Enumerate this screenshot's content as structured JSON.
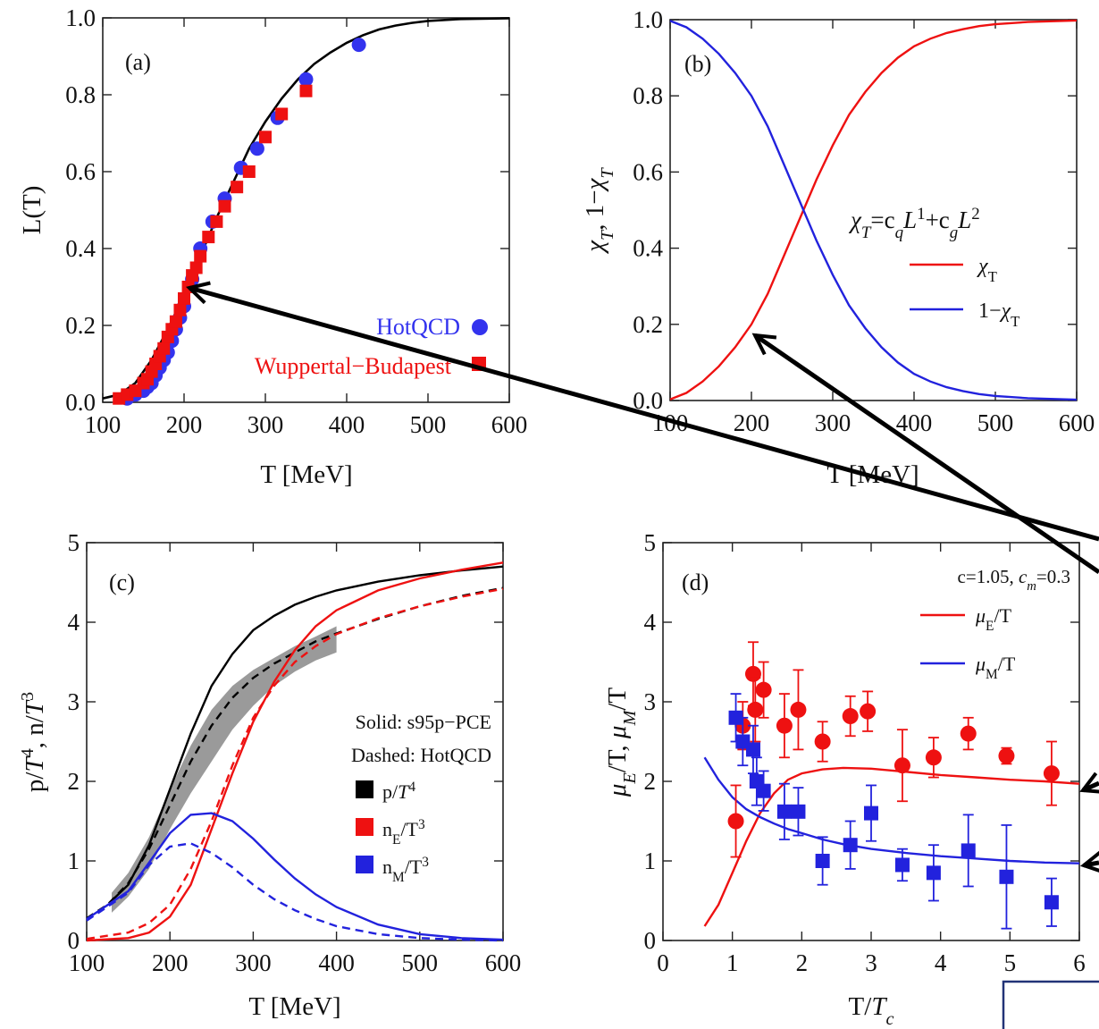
{
  "chart_data": [
    {
      "panel": "(a)",
      "type": "scatter",
      "xlabel": "T [MeV]",
      "ylabel": "L(T)",
      "xlim": [
        100,
        600
      ],
      "ylim": [
        0,
        1.0
      ],
      "xticks": [
        100,
        200,
        300,
        400,
        500,
        600
      ],
      "yticks": [
        0.0,
        0.2,
        0.4,
        0.6,
        0.8,
        1.0
      ],
      "series": [
        {
          "kind": "line",
          "color": "#000000",
          "x": [
            100,
            120,
            140,
            160,
            180,
            200,
            220,
            240,
            260,
            280,
            300,
            320,
            340,
            360,
            380,
            400,
            420,
            440,
            460,
            480,
            500,
            540,
            600
          ],
          "y": [
            0.01,
            0.02,
            0.05,
            0.11,
            0.19,
            0.28,
            0.38,
            0.48,
            0.57,
            0.66,
            0.73,
            0.79,
            0.84,
            0.88,
            0.91,
            0.935,
            0.955,
            0.97,
            0.98,
            0.987,
            0.992,
            0.997,
            0.999
          ]
        },
        {
          "name": "HotQCD",
          "kind": "circle",
          "color": "#3333ee",
          "x": [
            130,
            140,
            150,
            155,
            160,
            165,
            170,
            175,
            180,
            185,
            190,
            195,
            200,
            210,
            220,
            235,
            250,
            270,
            290,
            315,
            350,
            415
          ],
          "y": [
            0.01,
            0.02,
            0.03,
            0.04,
            0.05,
            0.07,
            0.09,
            0.11,
            0.13,
            0.16,
            0.19,
            0.22,
            0.25,
            0.32,
            0.4,
            0.47,
            0.53,
            0.61,
            0.66,
            0.74,
            0.84,
            0.93
          ]
        },
        {
          "name": "Wuppertal−Budapest",
          "kind": "square",
          "color": "#ee1111",
          "x": [
            120,
            130,
            140,
            150,
            155,
            160,
            165,
            170,
            175,
            180,
            185,
            190,
            195,
            200,
            205,
            210,
            215,
            220,
            230,
            240,
            250,
            265,
            280,
            300,
            320,
            350
          ],
          "y": [
            0.01,
            0.02,
            0.03,
            0.05,
            0.06,
            0.08,
            0.1,
            0.12,
            0.14,
            0.17,
            0.19,
            0.21,
            0.24,
            0.27,
            0.3,
            0.33,
            0.35,
            0.38,
            0.43,
            0.47,
            0.51,
            0.56,
            0.6,
            0.69,
            0.75,
            0.81
          ]
        }
      ]
    },
    {
      "panel": "(b)",
      "type": "line",
      "xlabel": "T [MeV]",
      "ylabel": "χT, 1−χT",
      "formula": "χT=cqL1+cgL2",
      "xlim": [
        100,
        600
      ],
      "ylim": [
        0,
        1.0
      ],
      "xticks": [
        100,
        200,
        300,
        400,
        500,
        600
      ],
      "yticks": [
        0.0,
        0.2,
        0.4,
        0.6,
        0.8,
        1.0
      ],
      "series": [
        {
          "name": "χT",
          "color": "#ee1111",
          "x": [
            100,
            120,
            140,
            160,
            180,
            200,
            220,
            240,
            260,
            280,
            300,
            320,
            340,
            360,
            380,
            400,
            420,
            440,
            460,
            480,
            500,
            540,
            600
          ],
          "y": [
            0.003,
            0.02,
            0.05,
            0.09,
            0.14,
            0.2,
            0.28,
            0.38,
            0.48,
            0.58,
            0.67,
            0.75,
            0.81,
            0.86,
            0.9,
            0.93,
            0.95,
            0.965,
            0.975,
            0.983,
            0.988,
            0.994,
            0.998
          ]
        },
        {
          "name": "1−χT",
          "color": "#2222dd",
          "x": [
            100,
            120,
            140,
            160,
            180,
            200,
            220,
            240,
            260,
            280,
            300,
            320,
            340,
            360,
            380,
            400,
            420,
            440,
            460,
            480,
            500,
            540,
            600
          ],
          "y": [
            0.997,
            0.98,
            0.95,
            0.91,
            0.86,
            0.8,
            0.72,
            0.62,
            0.52,
            0.42,
            0.33,
            0.25,
            0.19,
            0.14,
            0.1,
            0.07,
            0.05,
            0.035,
            0.025,
            0.017,
            0.012,
            0.006,
            0.002
          ]
        }
      ]
    },
    {
      "panel": "(c)",
      "type": "line",
      "xlabel": "T [MeV]",
      "ylabel": "p/T4, n/T3",
      "xlim": [
        100,
        600
      ],
      "ylim": [
        0,
        5
      ],
      "xticks": [
        100,
        200,
        300,
        400,
        500,
        600
      ],
      "yticks": [
        0,
        1,
        2,
        3,
        4,
        5
      ],
      "legend_text": [
        "Solid: s95p−PCE",
        "Dashed: HotQCD"
      ],
      "legend": [
        {
          "label": "p/T4",
          "color": "#000000"
        },
        {
          "label": "nE/T3",
          "color": "#ee1111"
        },
        {
          "label": "nM/T3",
          "color": "#2222dd"
        }
      ],
      "band": {
        "color": "#888888",
        "x": [
          130,
          150,
          175,
          200,
          225,
          250,
          275,
          300,
          325,
          350,
          375,
          400
        ],
        "low": [
          0.35,
          0.55,
          0.9,
          1.4,
          1.85,
          2.25,
          2.65,
          2.95,
          3.2,
          3.38,
          3.52,
          3.62
        ],
        "high": [
          0.6,
          0.85,
          1.3,
          1.9,
          2.45,
          2.9,
          3.2,
          3.4,
          3.55,
          3.7,
          3.82,
          3.95
        ]
      },
      "series": [
        {
          "name": "p/T4 s95p-PCE",
          "color": "#000000",
          "dash": false,
          "x": [
            130,
            150,
            175,
            200,
            225,
            250,
            275,
            300,
            325,
            350,
            375,
            400,
            450,
            500,
            550,
            600
          ],
          "y": [
            0.5,
            0.7,
            1.2,
            1.9,
            2.6,
            3.2,
            3.6,
            3.9,
            4.08,
            4.22,
            4.32,
            4.4,
            4.51,
            4.59,
            4.65,
            4.7
          ]
        },
        {
          "name": "p/T4 HotQCD",
          "color": "#000000",
          "dash": true,
          "x": [
            100,
            125,
            150,
            175,
            200,
            225,
            250,
            275,
            300,
            325,
            350,
            375,
            400,
            450,
            500,
            550,
            600
          ],
          "y": [
            0.28,
            0.45,
            0.72,
            1.15,
            1.7,
            2.25,
            2.7,
            3.05,
            3.3,
            3.48,
            3.62,
            3.76,
            3.86,
            4.04,
            4.2,
            4.33,
            4.43
          ]
        },
        {
          "name": "nE/T3 s95p-PCE",
          "color": "#ee1111",
          "dash": false,
          "x": [
            100,
            150,
            175,
            200,
            225,
            250,
            275,
            300,
            325,
            350,
            375,
            400,
            450,
            500,
            550,
            600
          ],
          "y": [
            0.0,
            0.03,
            0.1,
            0.3,
            0.7,
            1.4,
            2.1,
            2.75,
            3.25,
            3.65,
            3.95,
            4.15,
            4.4,
            4.55,
            4.66,
            4.75
          ]
        },
        {
          "name": "nE/T3 HotQCD",
          "color": "#ee1111",
          "dash": true,
          "x": [
            100,
            150,
            175,
            200,
            225,
            250,
            275,
            300,
            325,
            350,
            375,
            400,
            450,
            500,
            550,
            600
          ],
          "y": [
            0.02,
            0.1,
            0.22,
            0.45,
            0.9,
            1.5,
            2.2,
            2.8,
            3.2,
            3.5,
            3.7,
            3.85,
            4.05,
            4.2,
            4.32,
            4.42
          ]
        },
        {
          "name": "nM/T3 s95p-PCE",
          "color": "#2222dd",
          "dash": false,
          "x": [
            100,
            150,
            175,
            200,
            225,
            250,
            275,
            300,
            325,
            350,
            375,
            400,
            450,
            500,
            550,
            600
          ],
          "y": [
            0.27,
            0.62,
            0.98,
            1.35,
            1.58,
            1.6,
            1.5,
            1.28,
            1.02,
            0.78,
            0.58,
            0.42,
            0.2,
            0.08,
            0.03,
            0.01
          ]
        },
        {
          "name": "nM/T3 HotQCD",
          "color": "#2222dd",
          "dash": true,
          "x": [
            100,
            150,
            175,
            200,
            225,
            250,
            275,
            300,
            325,
            350,
            375,
            400,
            450,
            500,
            550,
            600
          ],
          "y": [
            0.25,
            0.6,
            0.95,
            1.18,
            1.22,
            1.1,
            0.92,
            0.7,
            0.52,
            0.38,
            0.27,
            0.18,
            0.08,
            0.03,
            0.01,
            0.0
          ]
        }
      ]
    },
    {
      "panel": "(d)",
      "type": "scatter",
      "xlabel": "T/Tc",
      "ylabel": "μE/T, μM/T",
      "params": "c=1.05, cm=0.3",
      "xlim": [
        0,
        6
      ],
      "ylim": [
        0,
        5
      ],
      "xticks": [
        0,
        1,
        2,
        3,
        4,
        5,
        6
      ],
      "yticks": [
        0,
        1,
        2,
        3,
        4,
        5
      ],
      "legend": [
        {
          "label": "μE/T",
          "color": "#ee1111"
        },
        {
          "label": "μM/T",
          "color": "#2222dd"
        }
      ],
      "series": [
        {
          "name": "μE/T curve",
          "kind": "line",
          "color": "#ee1111",
          "x": [
            0.6,
            0.8,
            1.0,
            1.2,
            1.4,
            1.6,
            1.8,
            2.0,
            2.3,
            2.6,
            3.0,
            3.5,
            4.0,
            4.5,
            5.0,
            5.5,
            6.0
          ],
          "y": [
            0.18,
            0.45,
            0.85,
            1.25,
            1.6,
            1.85,
            2.02,
            2.1,
            2.15,
            2.17,
            2.16,
            2.12,
            2.08,
            2.05,
            2.02,
            2.0,
            1.97
          ]
        },
        {
          "name": "μM/T curve",
          "kind": "line",
          "color": "#2222dd",
          "x": [
            0.6,
            0.8,
            1.0,
            1.2,
            1.4,
            1.6,
            1.8,
            2.0,
            2.3,
            2.6,
            3.0,
            3.5,
            4.0,
            4.5,
            5.0,
            5.5,
            6.0
          ],
          "y": [
            2.3,
            2.02,
            1.8,
            1.65,
            1.55,
            1.47,
            1.4,
            1.35,
            1.27,
            1.21,
            1.15,
            1.1,
            1.06,
            1.03,
            1.0,
            0.98,
            0.97
          ]
        },
        {
          "name": "μE/T data",
          "kind": "circle",
          "color": "#ee1111",
          "x": [
            1.05,
            1.15,
            1.3,
            1.33,
            1.45,
            1.75,
            1.95,
            2.3,
            2.7,
            2.95,
            3.45,
            3.9,
            4.4,
            4.95,
            5.6
          ],
          "y": [
            1.5,
            2.7,
            3.35,
            2.9,
            3.15,
            2.7,
            2.9,
            2.5,
            2.82,
            2.88,
            2.2,
            2.3,
            2.6,
            2.32,
            2.1
          ],
          "err": [
            0.45,
            0.3,
            0.4,
            0.4,
            0.35,
            0.4,
            0.5,
            0.25,
            0.25,
            0.25,
            0.45,
            0.25,
            0.2,
            0.1,
            0.4
          ]
        },
        {
          "name": "μM/T data",
          "kind": "square",
          "color": "#2222dd",
          "x": [
            1.05,
            1.15,
            1.3,
            1.35,
            1.45,
            1.75,
            1.95,
            2.3,
            2.7,
            3.0,
            3.45,
            3.9,
            4.4,
            4.95,
            5.6
          ],
          "y": [
            2.8,
            2.5,
            2.4,
            2.0,
            1.88,
            1.62,
            1.62,
            1.0,
            1.2,
            1.6,
            0.95,
            0.85,
            1.13,
            0.8,
            0.48
          ],
          "err": [
            0.3,
            0.3,
            0.3,
            0.3,
            0.25,
            0.35,
            0.3,
            0.3,
            0.3,
            0.35,
            0.2,
            0.35,
            0.45,
            0.65,
            0.3
          ]
        }
      ]
    }
  ],
  "colors": {
    "red": "#ee1111",
    "blue": "#2222dd",
    "black": "#000000",
    "band": "#888888"
  }
}
